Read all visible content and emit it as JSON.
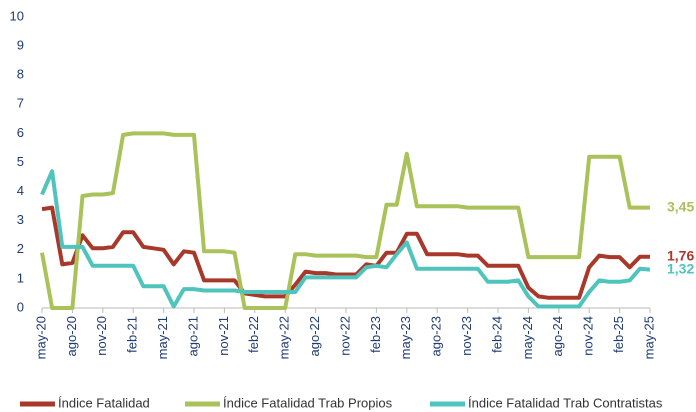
{
  "chart_data": {
    "type": "line",
    "categories": [
      "may-20",
      null,
      null,
      "ago-20",
      null,
      null,
      "nov-20",
      null,
      null,
      "feb-21",
      null,
      null,
      "may-21",
      null,
      null,
      "ago-21",
      null,
      null,
      "nov-21",
      null,
      null,
      "feb-22",
      null,
      null,
      "may-22",
      null,
      null,
      "ago-22",
      null,
      null,
      "nov-22",
      null,
      null,
      "feb-23",
      null,
      null,
      "may-23",
      null,
      null,
      "ago-23",
      null,
      null,
      "nov-23",
      null,
      null,
      "feb-24",
      null,
      null,
      "may-24",
      null,
      null,
      "ago-24",
      null,
      null,
      "nov-24",
      null,
      null,
      "feb-25",
      null,
      null,
      "may-25"
    ],
    "ylim": [
      0,
      10
    ],
    "yticks": [
      0,
      1,
      2,
      3,
      4,
      5,
      6,
      7,
      8,
      9,
      10
    ],
    "grid": false,
    "legend": "bottom",
    "series": [
      {
        "name": "Índice Fatalidad",
        "color": "#a8392a",
        "values": [
          3.4,
          3.45,
          1.5,
          1.55,
          2.5,
          2.05,
          2.05,
          2.1,
          2.6,
          2.6,
          2.1,
          2.05,
          2.0,
          1.5,
          1.95,
          1.9,
          0.95,
          0.95,
          0.95,
          0.95,
          0.5,
          0.45,
          0.4,
          0.4,
          0.4,
          0.8,
          1.25,
          1.2,
          1.2,
          1.15,
          1.15,
          1.15,
          1.5,
          1.45,
          1.9,
          1.9,
          2.55,
          2.55,
          1.85,
          1.85,
          1.85,
          1.85,
          1.8,
          1.8,
          1.45,
          1.45,
          1.45,
          1.45,
          0.7,
          0.4,
          0.35,
          0.35,
          0.35,
          0.35,
          1.4,
          1.8,
          1.75,
          1.75,
          1.4,
          1.76,
          1.76
        ],
        "value_labels": [
          null,
          null,
          null,
          null,
          null,
          null,
          null,
          null,
          null,
          null,
          null,
          null,
          null,
          null,
          null,
          null,
          null,
          null,
          null,
          null,
          null,
          null,
          null,
          null,
          null,
          null,
          null,
          null,
          null,
          null,
          null,
          null,
          null,
          null,
          null,
          null,
          null,
          null,
          null,
          null,
          null,
          null,
          null,
          null,
          null,
          null,
          null,
          null,
          null,
          null,
          null,
          null,
          null,
          null,
          null,
          null,
          null,
          null,
          null,
          null,
          "1,76"
        ]
      },
      {
        "name": "Índice Fatalidad Trab Propios",
        "color": "#a9c25a",
        "values": [
          1.9,
          0,
          0,
          0,
          3.85,
          3.9,
          3.9,
          3.95,
          5.95,
          6.0,
          6.0,
          6.0,
          6.0,
          5.95,
          5.95,
          5.95,
          1.95,
          1.95,
          1.95,
          1.9,
          0,
          0,
          0,
          0,
          0,
          1.85,
          1.85,
          1.8,
          1.8,
          1.8,
          1.8,
          1.8,
          1.75,
          1.75,
          3.55,
          3.55,
          5.3,
          3.5,
          3.5,
          3.5,
          3.5,
          3.5,
          3.45,
          3.45,
          3.45,
          3.45,
          3.45,
          3.45,
          1.75,
          1.75,
          1.75,
          1.75,
          1.75,
          1.75,
          5.2,
          5.2,
          5.2,
          5.2,
          3.45,
          3.45,
          3.45
        ],
        "value_labels": [
          null,
          null,
          null,
          null,
          null,
          null,
          null,
          null,
          null,
          null,
          null,
          null,
          null,
          null,
          null,
          null,
          null,
          null,
          null,
          null,
          null,
          null,
          null,
          null,
          null,
          null,
          null,
          null,
          null,
          null,
          null,
          null,
          null,
          null,
          null,
          null,
          null,
          null,
          null,
          null,
          null,
          null,
          null,
          null,
          null,
          null,
          null,
          null,
          null,
          null,
          null,
          null,
          null,
          null,
          null,
          null,
          null,
          null,
          null,
          null,
          "3,45"
        ]
      },
      {
        "name": "Índice Fatalidad Trab Contratistas",
        "color": "#4fc4bc",
        "values": [
          3.9,
          4.7,
          2.1,
          2.1,
          2.1,
          1.45,
          1.45,
          1.45,
          1.45,
          1.45,
          0.75,
          0.75,
          0.75,
          0.05,
          0.65,
          0.65,
          0.6,
          0.6,
          0.6,
          0.6,
          0.55,
          0.55,
          0.55,
          0.55,
          0.55,
          0.55,
          1.05,
          1.05,
          1.05,
          1.05,
          1.05,
          1.05,
          1.4,
          1.45,
          1.4,
          1.85,
          2.25,
          1.35,
          1.35,
          1.35,
          1.35,
          1.35,
          1.35,
          1.35,
          0.9,
          0.9,
          0.9,
          0.95,
          0.4,
          0.05,
          0.05,
          0.05,
          0.05,
          0.05,
          0.55,
          0.95,
          0.9,
          0.9,
          0.95,
          1.35,
          1.32
        ],
        "value_labels": [
          null,
          null,
          null,
          null,
          null,
          null,
          null,
          null,
          null,
          null,
          null,
          null,
          null,
          null,
          null,
          null,
          null,
          null,
          null,
          null,
          null,
          null,
          null,
          null,
          null,
          null,
          null,
          null,
          null,
          null,
          null,
          null,
          null,
          null,
          null,
          null,
          null,
          null,
          null,
          null,
          null,
          null,
          null,
          null,
          null,
          null,
          null,
          null,
          null,
          null,
          null,
          null,
          null,
          null,
          null,
          null,
          null,
          null,
          null,
          null,
          "1,32"
        ]
      }
    ]
  }
}
